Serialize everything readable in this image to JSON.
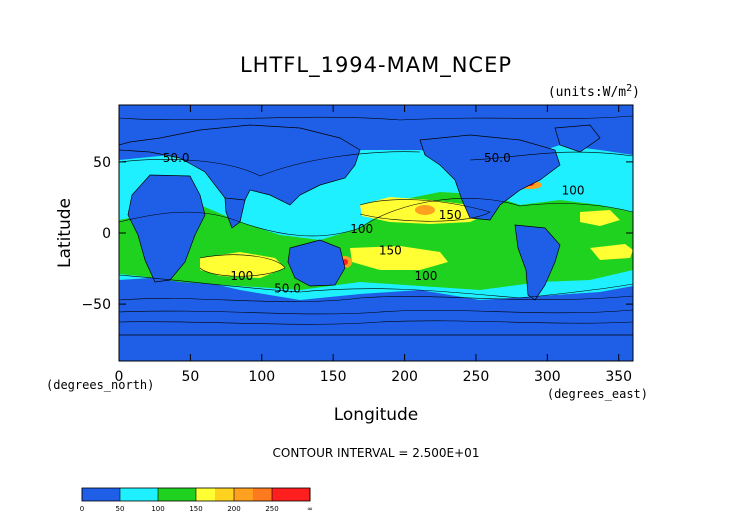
{
  "chart_data": {
    "type": "heatmap",
    "title": "LHTFL_1994-MAM_NCEP",
    "units_note": "(units:W/m^2)",
    "xlabel": "Longitude",
    "ylabel": "Latitude",
    "x_unit_note": "(degrees_east)",
    "y_unit_note": "(degrees_north)",
    "xlim": [
      0,
      360
    ],
    "ylim": [
      -90,
      90
    ],
    "x_ticks": [
      0,
      50,
      100,
      150,
      200,
      250,
      300,
      350
    ],
    "y_ticks": [
      -50,
      0,
      50
    ],
    "contour_interval_text": "CONTOUR INTERVAL = 2.500E+01",
    "contour_labels": [
      {
        "text": "50.0",
        "lon": 40,
        "lat": 50
      },
      {
        "text": "50.0",
        "lon": 265,
        "lat": 50
      },
      {
        "text": "100",
        "lon": 318,
        "lat": 27
      },
      {
        "text": "150",
        "lon": 232,
        "lat": 10
      },
      {
        "text": "100",
        "lon": 170,
        "lat": 0
      },
      {
        "text": "150",
        "lon": 190,
        "lat": -15
      },
      {
        "text": "100",
        "lon": 86,
        "lat": -33
      },
      {
        "text": "50.0",
        "lon": 118,
        "lat": -42
      },
      {
        "text": "100",
        "lon": 215,
        "lat": -33
      }
    ],
    "colorbar": {
      "levels": [
        "0",
        "50",
        "100",
        "150",
        "200",
        "250",
        "∞"
      ],
      "colors": [
        "#1f5fe8",
        "#1f5fe8",
        "#1ff0ff",
        "#1ff0ff",
        "#1fd21f",
        "#1fd21f",
        "#ffff33",
        "#ffd21f",
        "#ffa01f",
        "#ff7a1f",
        "#ff1f1f",
        "#ff1f1f"
      ]
    }
  },
  "colors": {
    "deep": "#1f5fe8",
    "cyan": "#1ff0ff",
    "green": "#1fd21f",
    "yellow": "#ffff33",
    "orange": "#ffa01f",
    "red": "#ff1f1f"
  }
}
